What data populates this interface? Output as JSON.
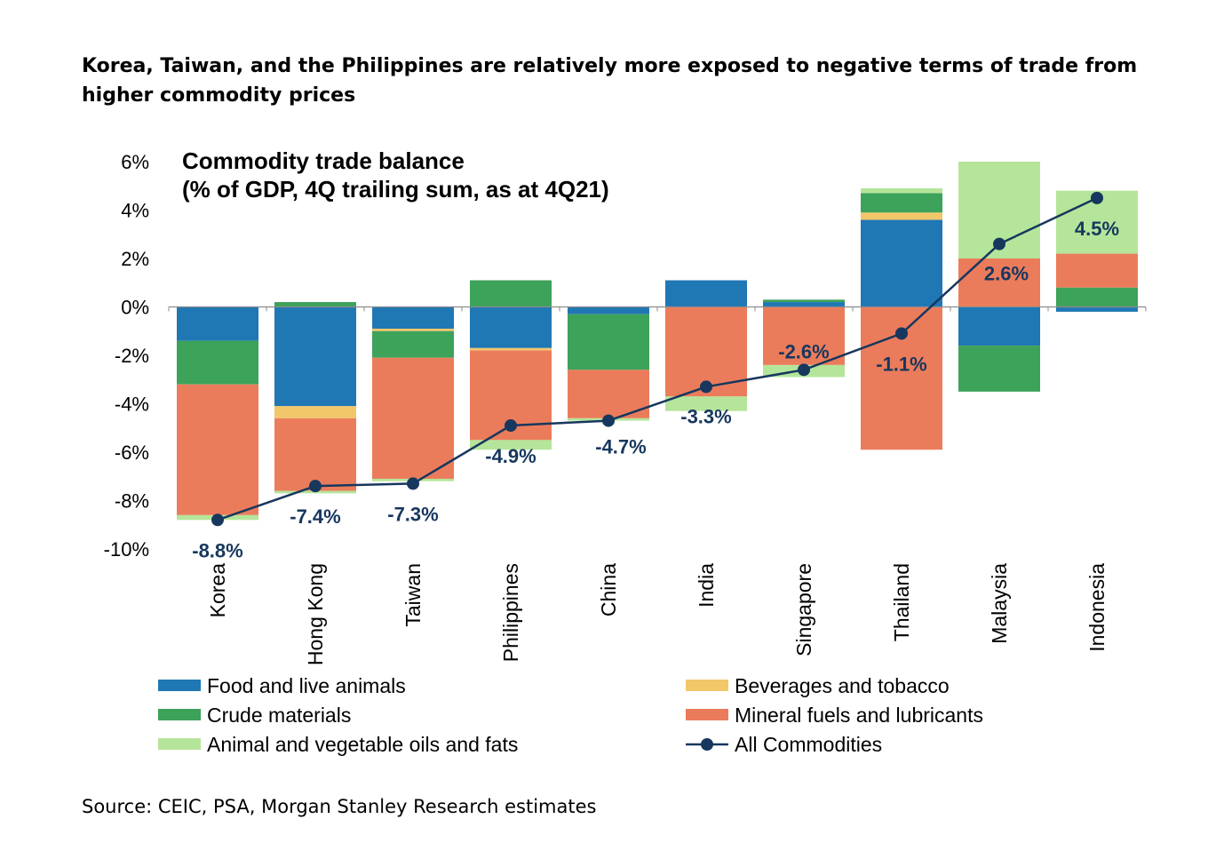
{
  "headline": "Korea, Taiwan, and the Philippines are relatively more exposed to negative terms of trade from higher commodity prices",
  "source": "Source: CEIC, PSA, Morgan Stanley Research estimates",
  "chart_data": {
    "type": "bar",
    "stacked": true,
    "title": "Commodity trade balance",
    "subtitle": "(% of GDP, 4Q trailing sum, as at 4Q21)",
    "ylim": [
      -10,
      6
    ],
    "yticks": [
      6,
      4,
      2,
      0,
      -2,
      -4,
      -6,
      -8,
      -10
    ],
    "ytick_labels": [
      "6%",
      "4%",
      "2%",
      "0%",
      "-2%",
      "-4%",
      "-6%",
      "-8%",
      "-10%"
    ],
    "categories": [
      "Korea",
      "Hong Kong",
      "Taiwan",
      "Philippines",
      "China",
      "India",
      "Singapore",
      "Thailand",
      "Malaysia",
      "Indonesia"
    ],
    "series": [
      {
        "name": "Food and live animals",
        "color": "#1f77b4",
        "values": [
          -1.4,
          -4.1,
          -0.9,
          -1.7,
          -0.3,
          1.1,
          0.2,
          3.6,
          -1.6,
          -0.2
        ]
      },
      {
        "name": "Beverages and tobacco",
        "color": "#f2c76a",
        "values": [
          0,
          -0.5,
          -0.1,
          -0.1,
          0,
          0,
          0,
          0.3,
          0,
          0
        ]
      },
      {
        "name": "Crude materials",
        "color": "#3da25a",
        "values": [
          -1.8,
          0.2,
          -1.1,
          1.1,
          -2.3,
          0,
          0.1,
          0.8,
          -1.9,
          0.8
        ]
      },
      {
        "name": "Mineral fuels and lubricants",
        "color": "#eb7c5b",
        "values": [
          -5.4,
          -3.0,
          -5.0,
          -3.7,
          -2.0,
          -3.7,
          -2.4,
          -5.9,
          2.0,
          1.4
        ]
      },
      {
        "name": "Animal and vegetable oils and fats",
        "color": "#b5e59a",
        "values": [
          -0.2,
          -0.1,
          -0.1,
          -0.4,
          -0.1,
          -0.6,
          -0.5,
          0.2,
          4.0,
          2.6
        ]
      }
    ],
    "line": {
      "name": "All Commodities",
      "color": "#17375e",
      "values": [
        -8.8,
        -7.4,
        -7.3,
        -4.9,
        -4.7,
        -3.3,
        -2.6,
        -1.1,
        2.6,
        4.5
      ],
      "labels": [
        "-8.8%",
        "-7.4%",
        "-7.3%",
        "-4.9%",
        "-4.7%",
        "-3.3%",
        "-2.6%",
        "-1.1%",
        "2.6%",
        "4.5%"
      ]
    },
    "legend_position": "bottom",
    "grid": false
  }
}
